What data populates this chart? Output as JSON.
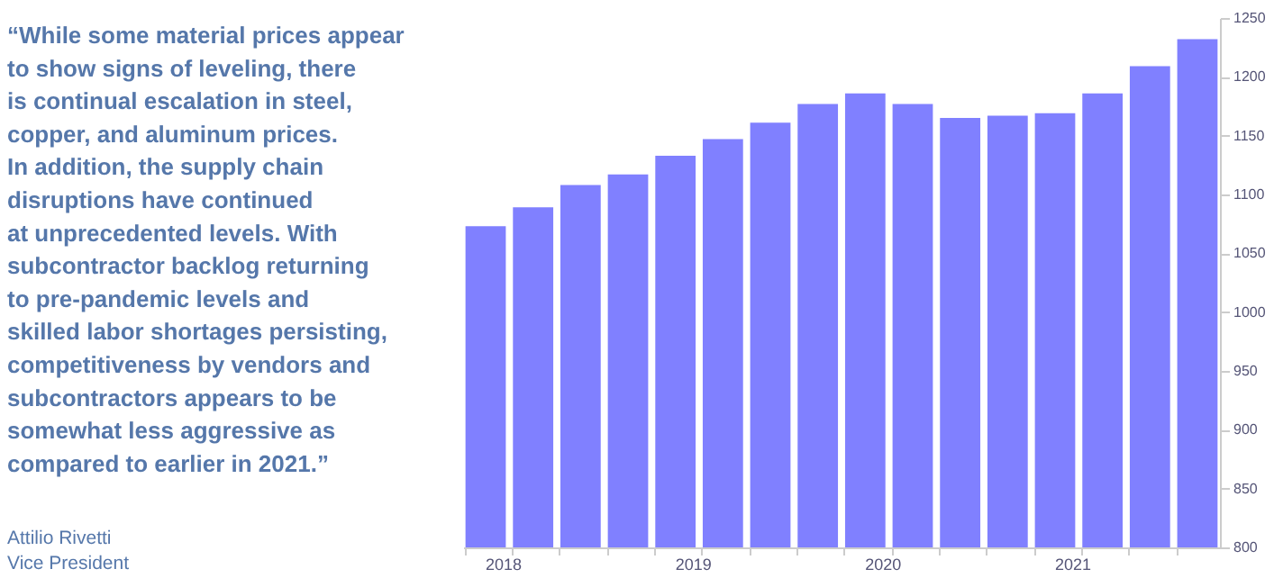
{
  "chart_data": {
    "type": "bar",
    "categories": [
      "2018",
      null,
      null,
      null,
      "2019",
      null,
      null,
      null,
      "2020",
      null,
      null,
      null,
      "2021",
      null,
      null,
      null
    ],
    "values": [
      1073,
      1089,
      1108,
      1117,
      1133,
      1147,
      1161,
      1177,
      1186,
      1177,
      1165,
      1167,
      1169,
      1186,
      1209,
      1232
    ],
    "color": "#8080ff",
    "ylim": [
      800,
      1250
    ],
    "yticks": [
      800,
      850,
      900,
      950,
      1000,
      1050,
      1100,
      1150,
      1200,
      1250
    ],
    "grid": false,
    "annotations": [
      "“While some material prices appear\nto show signs of leveling, there\nis continual escalation in steel,\ncopper, and aluminum prices.\nIn addition, the supply chain\ndisruptions have continued\nat unprecedented levels. With\nsubcontractor backlog returning\nto pre-pandemic levels and\nskilled labor shortages persisting,\ncompetitiveness by vendors and\nsubcontractors appears to be\nsomewhat less aggressive as\ncompared to earlier in 2021.”",
      "Attilio Rivetti",
      "Vice President"
    ]
  }
}
